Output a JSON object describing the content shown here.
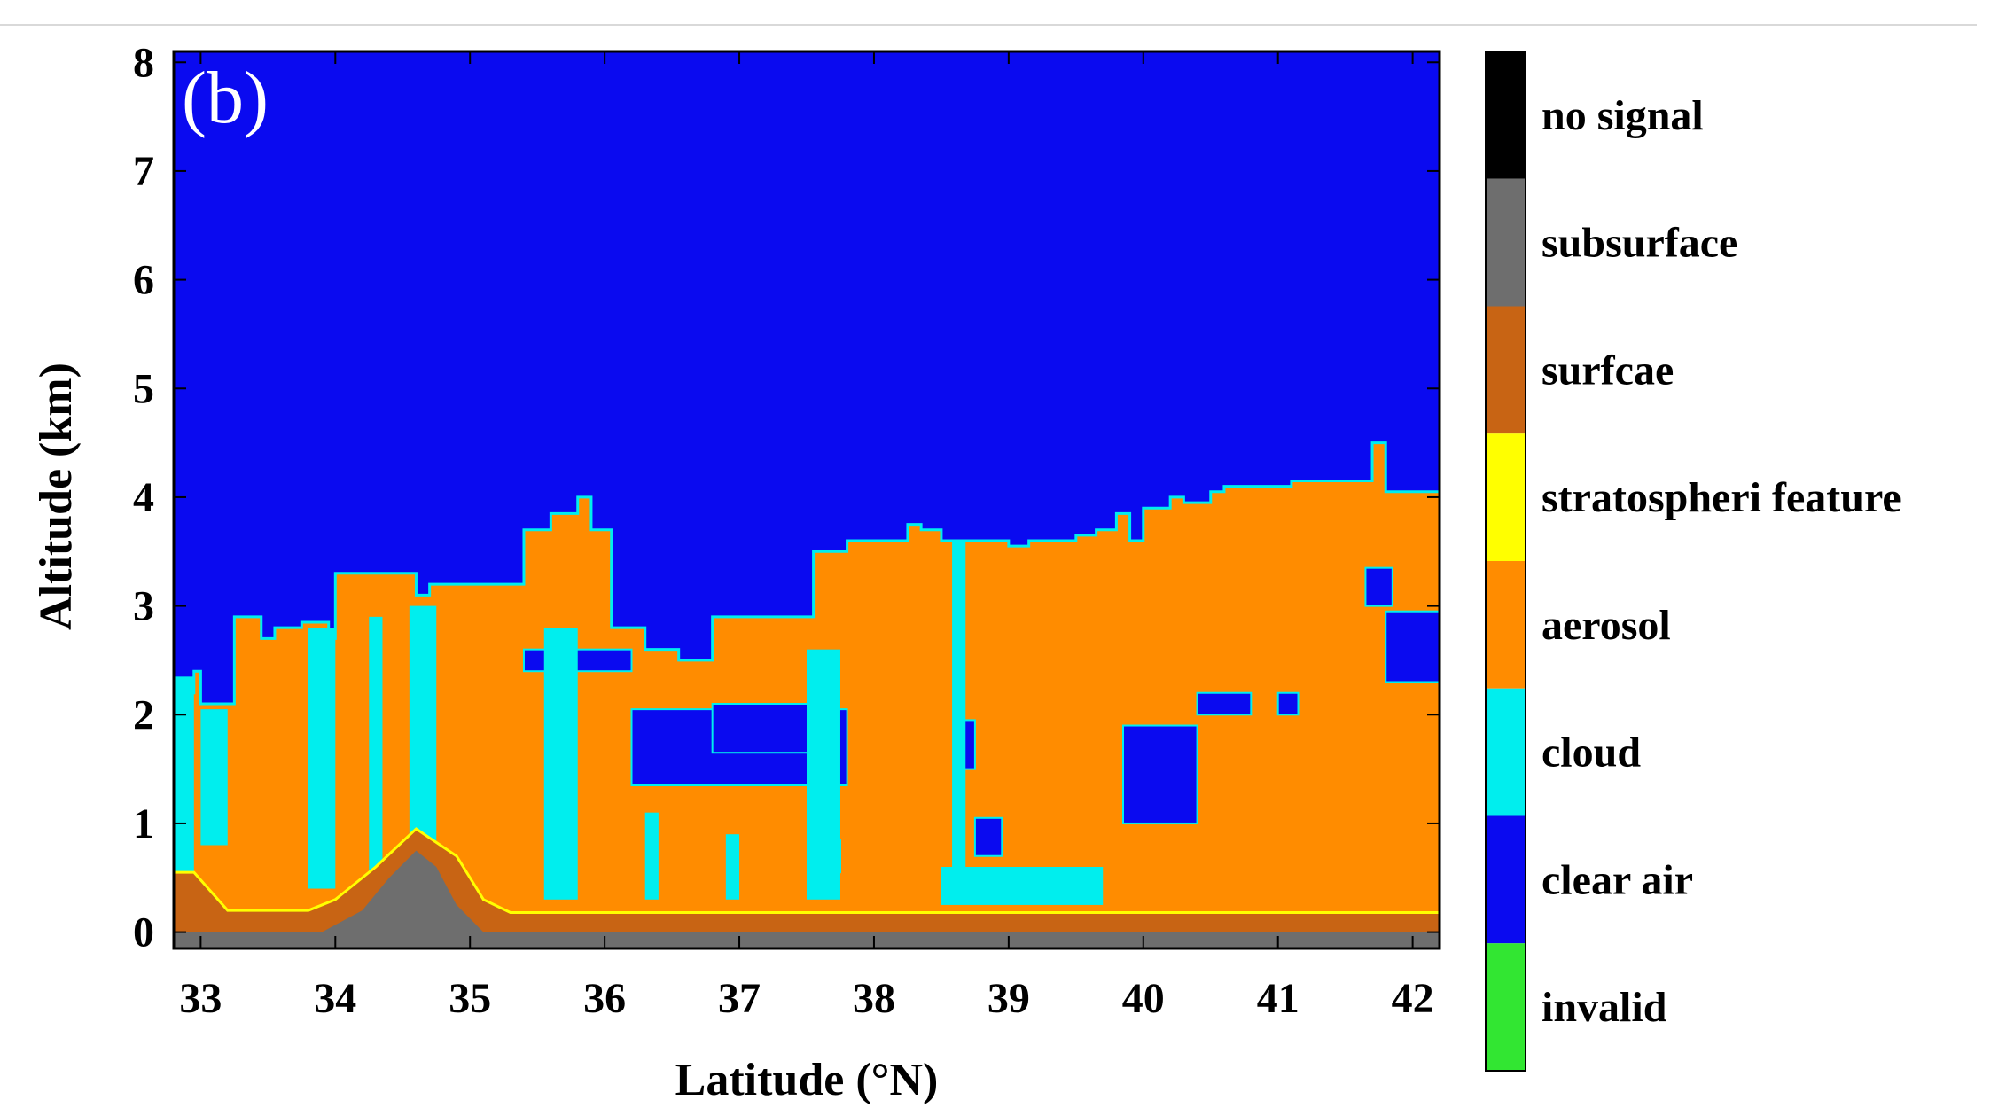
{
  "chart_data": {
    "type": "heatmap",
    "panel_label": "(b)",
    "xlabel": "Latitude (°N)",
    "ylabel": "Altitude (km)",
    "xlim": [
      32.8,
      42.2
    ],
    "ylim": [
      -0.15,
      8.1
    ],
    "x_ticks": [
      33,
      34,
      35,
      36,
      37,
      38,
      39,
      40,
      41,
      42
    ],
    "y_ticks": [
      0,
      1,
      2,
      3,
      4,
      5,
      6,
      7,
      8
    ],
    "background_class": "clear air",
    "legend": [
      {
        "label": "no signal",
        "color": "#000000"
      },
      {
        "label": "subsurface",
        "color": "#6e6e6e"
      },
      {
        "label": "surfcae",
        "color": "#c86414"
      },
      {
        "label": "stratospheri feature",
        "color": "#ffff00"
      },
      {
        "label": "aerosol",
        "color": "#ff8c00"
      },
      {
        "label": "cloud",
        "color": "#00eeee"
      },
      {
        "label": "clear air",
        "color": "#0a0af0"
      },
      {
        "label": "invalid",
        "color": "#32e632"
      }
    ],
    "aerosol_top_profile": {
      "lat": [
        32.8,
        32.95,
        33.0,
        33.15,
        33.25,
        33.45,
        33.55,
        33.75,
        33.95,
        34.0,
        34.3,
        34.6,
        34.7,
        35.0,
        35.05,
        35.25,
        35.4,
        35.6,
        35.8,
        35.9,
        36.05,
        36.3,
        36.55,
        36.8,
        37.5,
        37.55,
        37.8,
        38.25,
        38.35,
        38.5,
        39.0,
        39.15,
        39.5,
        39.65,
        39.8,
        39.9,
        40.0,
        40.2,
        40.3,
        40.5,
        40.6,
        41.1,
        41.7,
        41.8,
        42.2
      ],
      "alt": [
        2.2,
        2.4,
        2.1,
        2.1,
        2.9,
        2.7,
        2.8,
        2.85,
        2.7,
        3.3,
        3.3,
        3.1,
        3.2,
        3.2,
        3.2,
        3.2,
        3.7,
        3.85,
        4.0,
        3.7,
        2.8,
        2.6,
        2.5,
        2.9,
        2.9,
        3.5,
        3.6,
        3.75,
        3.7,
        3.6,
        3.55,
        3.6,
        3.65,
        3.7,
        3.85,
        3.6,
        3.9,
        4.0,
        3.95,
        4.05,
        4.1,
        4.15,
        4.5,
        4.05,
        4.05
      ]
    },
    "clear_air_patches": [
      {
        "lat": [
          36.2,
          37.8
        ],
        "alt": [
          1.35,
          2.05
        ]
      },
      {
        "lat": [
          36.8,
          37.6
        ],
        "alt": [
          1.65,
          2.1
        ]
      },
      {
        "lat": [
          39.85,
          40.4
        ],
        "alt": [
          1.0,
          1.9
        ]
      },
      {
        "lat": [
          40.4,
          40.8
        ],
        "alt": [
          2.0,
          2.2
        ]
      },
      {
        "lat": [
          41.0,
          41.15
        ],
        "alt": [
          2.0,
          2.2
        ]
      },
      {
        "lat": [
          41.8,
          42.2
        ],
        "alt": [
          2.3,
          2.95
        ]
      },
      {
        "lat": [
          41.65,
          41.85
        ],
        "alt": [
          3.0,
          3.35
        ]
      },
      {
        "lat": [
          38.6,
          38.75
        ],
        "alt": [
          1.5,
          1.95
        ]
      },
      {
        "lat": [
          38.75,
          38.95
        ],
        "alt": [
          0.7,
          1.05
        ]
      },
      {
        "lat": [
          35.4,
          36.2
        ],
        "alt": [
          2.4,
          2.6
        ]
      },
      {
        "lat": [
          37.55,
          37.75
        ],
        "alt": [
          0.55,
          0.85
        ]
      }
    ],
    "cloud_columns": [
      {
        "lat": [
          32.8,
          32.95
        ],
        "alt": [
          0.5,
          2.35
        ]
      },
      {
        "lat": [
          33.0,
          33.2
        ],
        "alt": [
          0.8,
          2.05
        ]
      },
      {
        "lat": [
          33.8,
          34.0
        ],
        "alt": [
          0.4,
          2.8
        ]
      },
      {
        "lat": [
          34.25,
          34.35
        ],
        "alt": [
          0.5,
          2.9
        ]
      },
      {
        "lat": [
          34.55,
          34.75
        ],
        "alt": [
          0.6,
          3.0
        ]
      },
      {
        "lat": [
          35.55,
          35.8
        ],
        "alt": [
          0.3,
          2.8
        ]
      },
      {
        "lat": [
          37.5,
          37.75
        ],
        "alt": [
          0.3,
          2.6
        ]
      },
      {
        "lat": [
          38.58,
          38.68
        ],
        "alt": [
          0.4,
          3.6
        ]
      },
      {
        "lat": [
          38.5,
          39.7
        ],
        "alt": [
          0.25,
          0.6
        ]
      },
      {
        "lat": [
          36.9,
          37.0
        ],
        "alt": [
          0.3,
          0.9
        ]
      },
      {
        "lat": [
          36.3,
          36.4
        ],
        "alt": [
          0.3,
          1.1
        ]
      }
    ],
    "subsurface_profile": {
      "lat": [
        32.8,
        33.1,
        33.9,
        34.2,
        34.4,
        34.6,
        34.75,
        34.9,
        35.1,
        42.2
      ],
      "alt": [
        0.0,
        0.0,
        0.0,
        0.2,
        0.5,
        0.75,
        0.6,
        0.25,
        0.0,
        0.0
      ]
    },
    "surface_profile": {
      "lat": [
        32.8,
        32.95,
        33.2,
        33.8,
        34.0,
        34.3,
        34.6,
        34.9,
        35.1,
        35.3,
        42.2
      ],
      "alt": [
        0.55,
        0.55,
        0.2,
        0.2,
        0.3,
        0.6,
        0.95,
        0.7,
        0.3,
        0.18,
        0.18
      ]
    }
  }
}
